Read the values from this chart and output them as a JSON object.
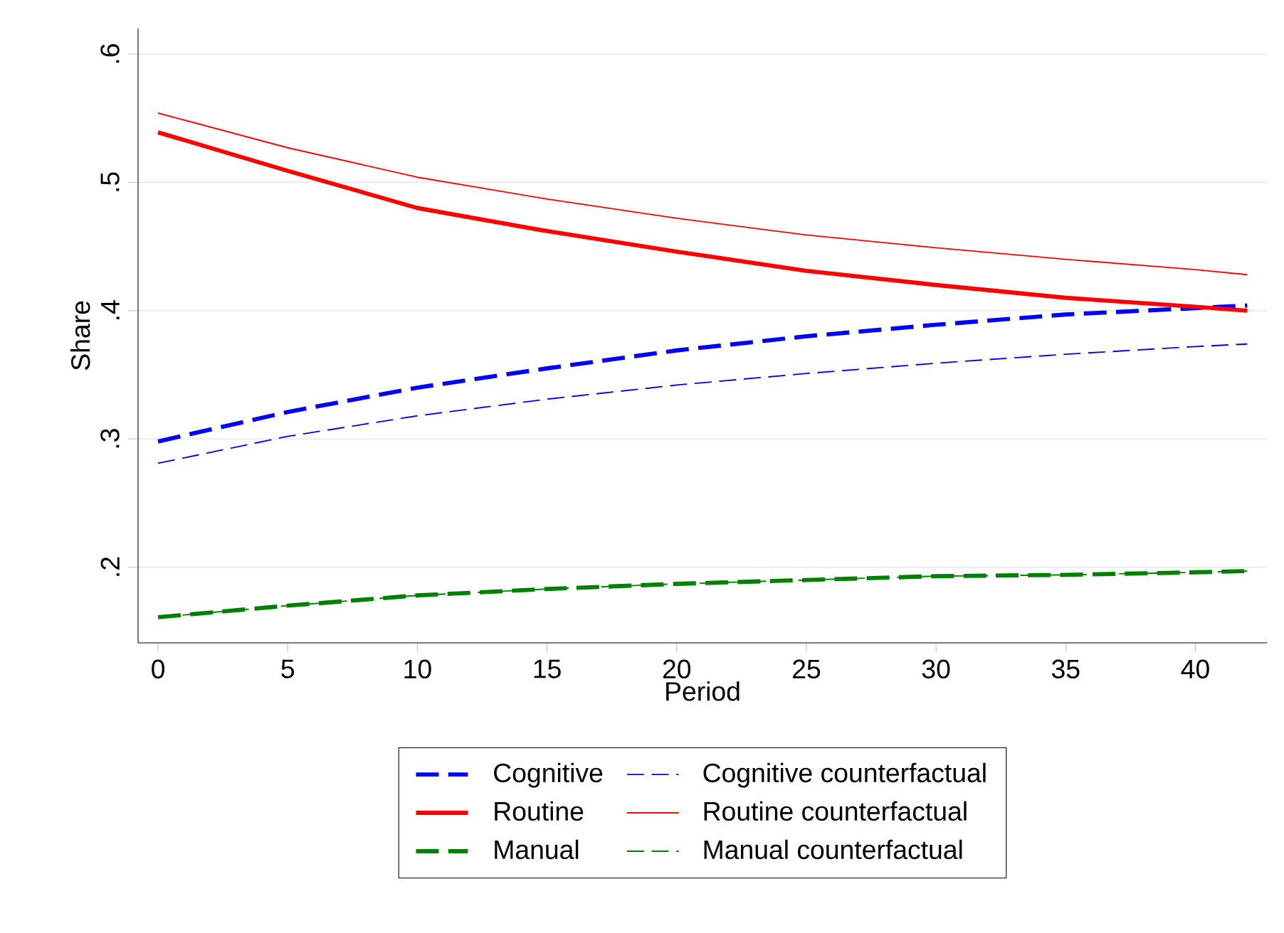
{
  "chart_data": {
    "type": "line",
    "xlabel": "Period",
    "ylabel": "Share",
    "x": [
      0,
      5,
      10,
      15,
      20,
      25,
      30,
      35,
      40,
      42
    ],
    "series": [
      {
        "name": "Cognitive",
        "color": "#0000ff",
        "line_style": "dashed",
        "values": [
          0.298,
          0.321,
          0.34,
          0.355,
          0.369,
          0.38,
          0.389,
          0.397,
          0.402,
          0.404
        ]
      },
      {
        "name": "Cognitive counterfactual",
        "color": "#0000ff",
        "line_style": "dashed",
        "values": [
          0.281,
          0.302,
          0.318,
          0.331,
          0.342,
          0.351,
          0.359,
          0.366,
          0.372,
          0.374
        ]
      },
      {
        "name": "Routine",
        "color": "#ff0000",
        "line_style": "solid",
        "values": [
          0.539,
          0.509,
          0.48,
          0.462,
          0.446,
          0.431,
          0.42,
          0.41,
          0.403,
          0.4
        ]
      },
      {
        "name": "Routine counterfactual",
        "color": "#ff0000",
        "line_style": "solid",
        "values": [
          0.554,
          0.527,
          0.504,
          0.487,
          0.472,
          0.459,
          0.449,
          0.44,
          0.432,
          0.428
        ]
      },
      {
        "name": "Manual",
        "color": "#008000",
        "line_style": "dashed",
        "values": [
          0.161,
          0.17,
          0.178,
          0.183,
          0.187,
          0.19,
          0.193,
          0.194,
          0.196,
          0.197
        ]
      },
      {
        "name": "Manual counterfactual",
        "color": "#008000",
        "line_style": "dashed",
        "values": [
          0.161,
          0.17,
          0.178,
          0.183,
          0.187,
          0.19,
          0.193,
          0.194,
          0.196,
          0.197
        ]
      }
    ],
    "xlim": [
      -0.77,
      42.76
    ],
    "ylim": [
      0.141,
      0.62
    ],
    "xticks": [
      0,
      5,
      10,
      15,
      20,
      25,
      30,
      35,
      40
    ],
    "yticks": [
      {
        "value": 0.2,
        "label": ".2"
      },
      {
        "value": 0.3,
        "label": ".3"
      },
      {
        "value": 0.4,
        "label": ".4"
      },
      {
        "value": 0.5,
        "label": ".5"
      },
      {
        "value": 0.6,
        "label": ".6"
      }
    ],
    "grid": "y",
    "legend": "bottom",
    "marker": "none"
  }
}
